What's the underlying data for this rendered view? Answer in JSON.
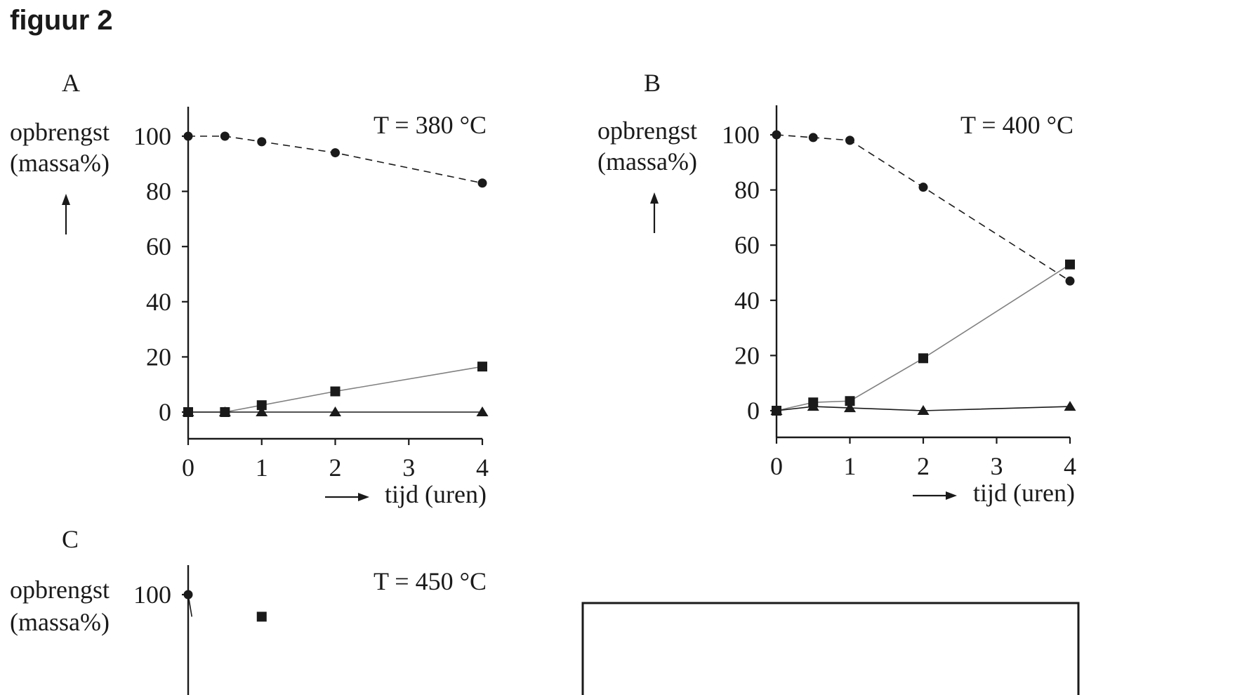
{
  "figure_title": "figuur 2",
  "legend_box_visible": true,
  "chart_data": [
    {
      "type": "line",
      "panel": "A",
      "annotation": "T = 380 °C",
      "ylabel_line1": "opbrengst",
      "ylabel_line2": "(massa%)",
      "xlabel": "tijd (uren)",
      "x_ticks": [
        "0",
        "1",
        "2",
        "3",
        "4"
      ],
      "y_ticks": [
        "0",
        "20",
        "40",
        "60",
        "80",
        "100"
      ],
      "xlim": [
        0,
        4
      ],
      "ylim": [
        -10,
        110
      ],
      "series": [
        {
          "name": "circles",
          "marker": "circle",
          "line": "dashed",
          "x": [
            0,
            0.5,
            1,
            2,
            4
          ],
          "y": [
            100,
            100,
            98,
            94,
            83
          ]
        },
        {
          "name": "squares",
          "marker": "square",
          "line": "grey",
          "x": [
            0,
            0.5,
            1,
            2,
            4
          ],
          "y": [
            0,
            0,
            2.5,
            7.5,
            16.5
          ]
        },
        {
          "name": "triangles",
          "marker": "triangle",
          "line": "solid",
          "x": [
            0,
            0.5,
            1,
            2,
            4
          ],
          "y": [
            0,
            0,
            0,
            0,
            0
          ]
        }
      ]
    },
    {
      "type": "line",
      "panel": "B",
      "annotation": "T = 400 °C",
      "ylabel_line1": "opbrengst",
      "ylabel_line2": "(massa%)",
      "xlabel": "tijd (uren)",
      "x_ticks": [
        "0",
        "1",
        "2",
        "3",
        "4"
      ],
      "y_ticks": [
        "0",
        "20",
        "40",
        "60",
        "80",
        "100"
      ],
      "xlim": [
        0,
        4
      ],
      "ylim": [
        -10,
        110
      ],
      "series": [
        {
          "name": "circles",
          "marker": "circle",
          "line": "dashed",
          "x": [
            0,
            0.5,
            1,
            2,
            4
          ],
          "y": [
            100,
            99,
            98,
            81,
            47
          ]
        },
        {
          "name": "squares",
          "marker": "square",
          "line": "grey",
          "x": [
            0,
            0.5,
            1,
            2,
            4
          ],
          "y": [
            0,
            3,
            3.5,
            19,
            53
          ]
        },
        {
          "name": "triangles",
          "marker": "triangle",
          "line": "solid",
          "x": [
            0,
            0.5,
            1,
            2,
            4
          ],
          "y": [
            0,
            1.5,
            1,
            0,
            1.5
          ]
        }
      ]
    },
    {
      "type": "line",
      "panel": "C",
      "annotation": "T = 450 °C",
      "ylabel_line1": "opbrengst",
      "ylabel_line2": "(massa%)",
      "xlabel": "",
      "x_ticks": [],
      "y_ticks": [
        "100"
      ],
      "xlim": [
        0,
        4
      ],
      "ylim": [
        -10,
        110
      ],
      "series": [
        {
          "name": "circles",
          "marker": "circle",
          "line": "solid",
          "x": [
            0,
            0.05
          ],
          "y": [
            100,
            92
          ]
        },
        {
          "name": "squares",
          "marker": "square",
          "line": "none",
          "x": [
            1
          ],
          "y": [
            92
          ]
        }
      ]
    }
  ]
}
